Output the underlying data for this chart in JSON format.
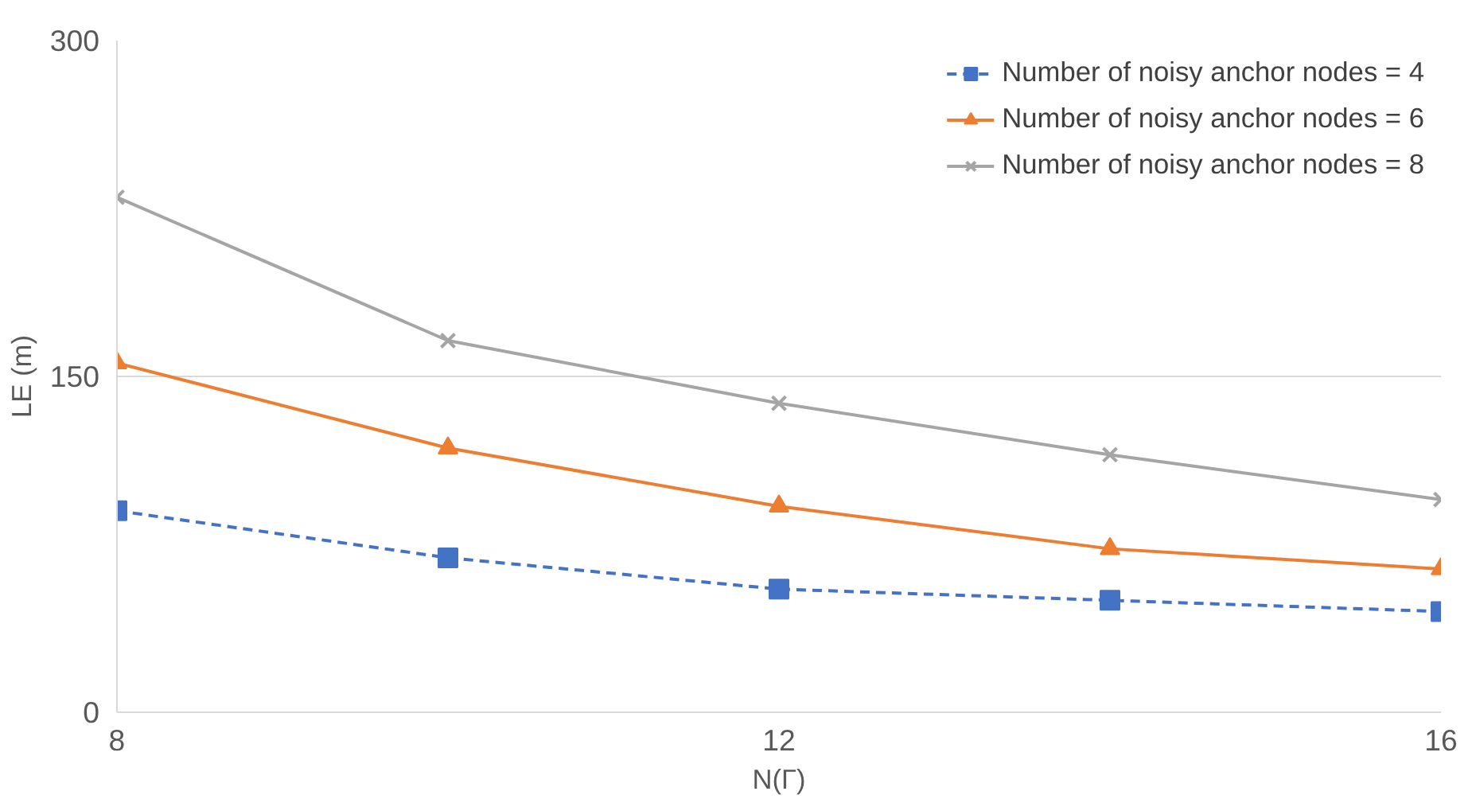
{
  "chart_data": {
    "type": "line",
    "xlabel": "N(Γ)",
    "ylabel": "LE (m)",
    "x": [
      8,
      10,
      12,
      14,
      16
    ],
    "xlim": [
      8,
      16
    ],
    "xticks": [
      8,
      12,
      16
    ],
    "ylim": [
      0,
      300
    ],
    "yticks": [
      0,
      150,
      300
    ],
    "grid": "y",
    "legend": "top right",
    "series": [
      {
        "name": "Number of noisy anchor nodes = 4",
        "color": "#4472c4",
        "values": [
          90,
          69,
          55,
          50,
          45
        ],
        "marker": "square",
        "line_style": "dashed"
      },
      {
        "name": "Number of noisy anchor nodes = 6",
        "color": "#ed7d31",
        "values": [
          156,
          118,
          92,
          73,
          64
        ],
        "marker": "triangle",
        "line_style": "solid"
      },
      {
        "name": "Number of noisy anchor nodes = 8",
        "color": "#a5a5a5",
        "values": [
          230,
          166,
          138,
          115,
          95
        ],
        "marker": "cross",
        "line_style": "solid"
      }
    ]
  }
}
